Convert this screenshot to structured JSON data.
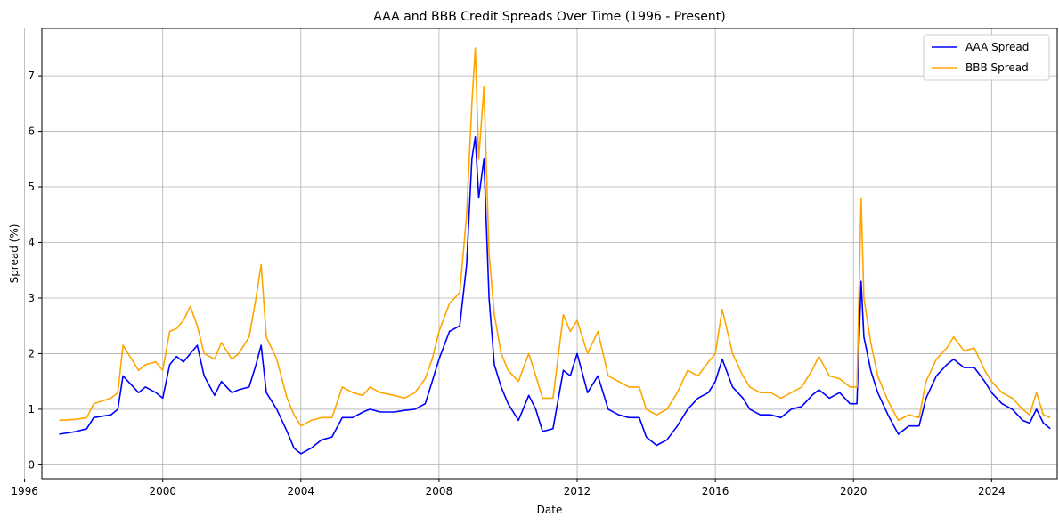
{
  "chart_data": {
    "type": "line",
    "title": "AAA and BBB Credit Spreads Over Time (1996 - Present)",
    "xlabel": "Date",
    "ylabel": "Spread (%)",
    "xlim": [
      1996.5,
      2025.9
    ],
    "ylim": [
      -0.25,
      7.85
    ],
    "x_ticks": [
      1996,
      2000,
      2004,
      2008,
      2012,
      2016,
      2020,
      2024
    ],
    "y_ticks": [
      0,
      1,
      2,
      3,
      4,
      5,
      6,
      7
    ],
    "grid": true,
    "legend_position": "top-right",
    "series": [
      {
        "name": "AAA Spread",
        "color": "#0000ff",
        "x": [
          1997.0,
          1997.5,
          1997.8,
          1998.0,
          1998.5,
          1998.7,
          1998.85,
          1999.0,
          1999.3,
          1999.5,
          1999.8,
          2000.0,
          2000.2,
          2000.4,
          2000.6,
          2000.8,
          2001.0,
          2001.2,
          2001.5,
          2001.7,
          2002.0,
          2002.2,
          2002.5,
          2002.7,
          2002.85,
          2003.0,
          2003.3,
          2003.6,
          2003.8,
          2004.0,
          2004.3,
          2004.6,
          2004.9,
          2005.2,
          2005.5,
          2005.8,
          2006.0,
          2006.3,
          2006.7,
          2007.0,
          2007.3,
          2007.6,
          2007.8,
          2008.0,
          2008.3,
          2008.6,
          2008.8,
          2008.95,
          2009.05,
          2009.15,
          2009.3,
          2009.45,
          2009.6,
          2009.8,
          2010.0,
          2010.3,
          2010.6,
          2010.8,
          2011.0,
          2011.3,
          2011.6,
          2011.8,
          2012.0,
          2012.3,
          2012.6,
          2012.9,
          2013.2,
          2013.5,
          2013.8,
          2014.0,
          2014.3,
          2014.6,
          2014.9,
          2015.2,
          2015.5,
          2015.8,
          2016.0,
          2016.2,
          2016.5,
          2016.8,
          2017.0,
          2017.3,
          2017.6,
          2017.9,
          2018.2,
          2018.5,
          2018.8,
          2019.0,
          2019.3,
          2019.6,
          2019.9,
          2020.1,
          2020.22,
          2020.3,
          2020.5,
          2020.7,
          2021.0,
          2021.3,
          2021.6,
          2021.9,
          2022.1,
          2022.4,
          2022.7,
          2022.9,
          2023.2,
          2023.5,
          2023.8,
          2024.0,
          2024.3,
          2024.6,
          2024.9,
          2025.1,
          2025.3,
          2025.5,
          2025.7
        ],
        "values": [
          0.55,
          0.6,
          0.65,
          0.85,
          0.9,
          1.0,
          1.6,
          1.5,
          1.3,
          1.4,
          1.3,
          1.2,
          1.8,
          1.95,
          1.85,
          2.0,
          2.15,
          1.6,
          1.25,
          1.5,
          1.3,
          1.35,
          1.4,
          1.8,
          2.15,
          1.3,
          1.0,
          0.6,
          0.3,
          0.2,
          0.3,
          0.45,
          0.5,
          0.85,
          0.85,
          0.95,
          1.0,
          0.95,
          0.95,
          0.98,
          1.0,
          1.1,
          1.5,
          1.9,
          2.4,
          2.5,
          3.6,
          5.5,
          5.9,
          4.8,
          5.5,
          3.0,
          1.8,
          1.4,
          1.1,
          0.8,
          1.25,
          1.0,
          0.6,
          0.65,
          1.7,
          1.6,
          2.0,
          1.3,
          1.6,
          1.0,
          0.9,
          0.85,
          0.85,
          0.5,
          0.35,
          0.45,
          0.7,
          1.0,
          1.2,
          1.3,
          1.5,
          1.9,
          1.4,
          1.2,
          1.0,
          0.9,
          0.9,
          0.85,
          1.0,
          1.05,
          1.25,
          1.35,
          1.2,
          1.3,
          1.1,
          1.1,
          3.3,
          2.3,
          1.7,
          1.3,
          0.9,
          0.55,
          0.7,
          0.7,
          1.2,
          1.6,
          1.8,
          1.9,
          1.75,
          1.75,
          1.5,
          1.3,
          1.1,
          1.0,
          0.8,
          0.75,
          1.0,
          0.75,
          0.65
        ]
      },
      {
        "name": "BBB Spread",
        "color": "#ffa500",
        "x": [
          1997.0,
          1997.5,
          1997.8,
          1998.0,
          1998.5,
          1998.7,
          1998.85,
          1999.0,
          1999.3,
          1999.5,
          1999.8,
          2000.0,
          2000.2,
          2000.4,
          2000.6,
          2000.8,
          2001.0,
          2001.2,
          2001.5,
          2001.7,
          2002.0,
          2002.2,
          2002.5,
          2002.7,
          2002.85,
          2003.0,
          2003.3,
          2003.6,
          2003.8,
          2004.0,
          2004.3,
          2004.6,
          2004.9,
          2005.2,
          2005.5,
          2005.8,
          2006.0,
          2006.3,
          2006.7,
          2007.0,
          2007.3,
          2007.6,
          2007.8,
          2008.0,
          2008.3,
          2008.6,
          2008.8,
          2008.95,
          2009.05,
          2009.15,
          2009.3,
          2009.45,
          2009.6,
          2009.8,
          2010.0,
          2010.3,
          2010.6,
          2010.8,
          2011.0,
          2011.3,
          2011.6,
          2011.8,
          2012.0,
          2012.3,
          2012.6,
          2012.9,
          2013.2,
          2013.5,
          2013.8,
          2014.0,
          2014.3,
          2014.6,
          2014.9,
          2015.2,
          2015.5,
          2015.8,
          2016.0,
          2016.2,
          2016.5,
          2016.8,
          2017.0,
          2017.3,
          2017.6,
          2017.9,
          2018.2,
          2018.5,
          2018.8,
          2019.0,
          2019.3,
          2019.6,
          2019.9,
          2020.1,
          2020.22,
          2020.3,
          2020.5,
          2020.7,
          2021.0,
          2021.3,
          2021.6,
          2021.9,
          2022.1,
          2022.4,
          2022.7,
          2022.9,
          2023.2,
          2023.5,
          2023.8,
          2024.0,
          2024.3,
          2024.6,
          2024.9,
          2025.1,
          2025.3,
          2025.5,
          2025.7
        ],
        "values": [
          0.8,
          0.82,
          0.85,
          1.1,
          1.2,
          1.3,
          2.15,
          2.0,
          1.7,
          1.8,
          1.85,
          1.7,
          2.4,
          2.45,
          2.6,
          2.85,
          2.5,
          2.0,
          1.9,
          2.2,
          1.9,
          2.0,
          2.3,
          3.0,
          3.6,
          2.3,
          1.9,
          1.2,
          0.9,
          0.7,
          0.8,
          0.85,
          0.85,
          1.4,
          1.3,
          1.25,
          1.4,
          1.3,
          1.25,
          1.2,
          1.3,
          1.55,
          1.9,
          2.4,
          2.9,
          3.1,
          4.5,
          6.5,
          7.5,
          5.5,
          6.8,
          3.8,
          2.7,
          2.0,
          1.7,
          1.5,
          2.0,
          1.6,
          1.2,
          1.2,
          2.7,
          2.4,
          2.6,
          2.0,
          2.4,
          1.6,
          1.5,
          1.4,
          1.4,
          1.0,
          0.9,
          1.0,
          1.3,
          1.7,
          1.6,
          1.85,
          2.0,
          2.8,
          2.0,
          1.6,
          1.4,
          1.3,
          1.3,
          1.2,
          1.3,
          1.4,
          1.7,
          1.95,
          1.6,
          1.55,
          1.4,
          1.4,
          4.8,
          3.0,
          2.2,
          1.6,
          1.15,
          0.8,
          0.9,
          0.85,
          1.5,
          1.9,
          2.1,
          2.3,
          2.05,
          2.1,
          1.7,
          1.5,
          1.3,
          1.2,
          1.0,
          0.9,
          1.3,
          0.9,
          0.85
        ]
      }
    ]
  }
}
